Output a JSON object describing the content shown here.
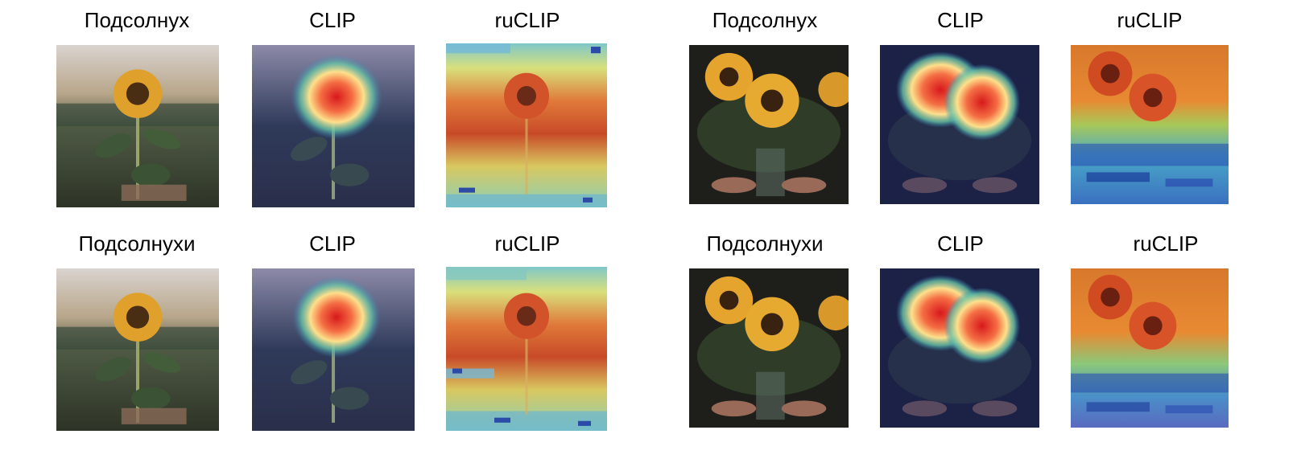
{
  "labels": {
    "prompt_single": "Подсолнух",
    "prompt_plural": "Подсолнухи",
    "model_clip": "CLIP",
    "model_ruclip": "ruCLIP"
  },
  "colors": {
    "background": "#ffffff",
    "heat_hot": "#d7191c",
    "heat_mid": "#fdae61",
    "heat_cool": "#abd9e9",
    "heat_cold": "#2c7bb6"
  }
}
